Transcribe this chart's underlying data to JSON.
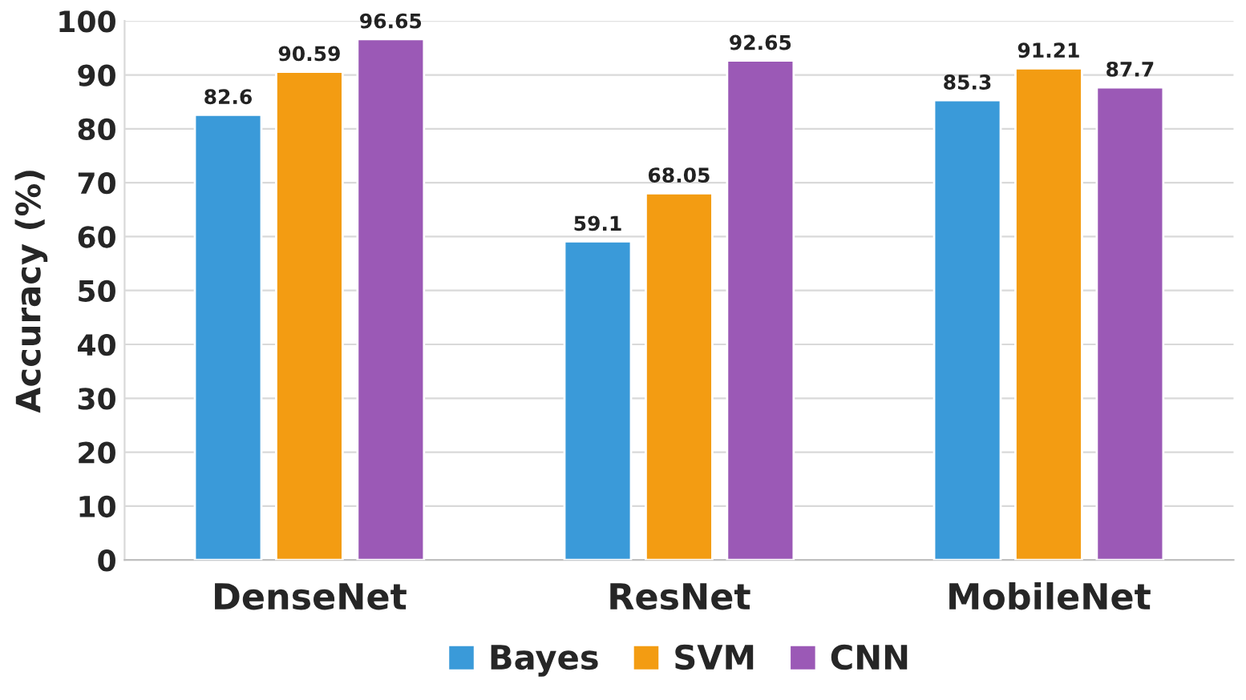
{
  "chart_data": {
    "type": "bar",
    "ylabel": "Accuracy (%)",
    "categories": [
      "DenseNet",
      "ResNet",
      "MobileNet"
    ],
    "series": [
      {
        "name": "Bayes",
        "color": "#3a9ad9",
        "values": [
          82.6,
          59.1,
          85.3
        ]
      },
      {
        "name": "SVM",
        "color": "#f39c12",
        "values": [
          90.59,
          68.05,
          91.21
        ]
      },
      {
        "name": "CNN",
        "color": "#9b59b6",
        "values": [
          96.65,
          92.65,
          87.7
        ]
      }
    ],
    "ylim": [
      0,
      100
    ],
    "yticks": [
      0,
      10,
      20,
      30,
      40,
      50,
      60,
      70,
      80,
      90,
      100
    ],
    "grid": "y",
    "legend": "bottom",
    "data_labels": true
  }
}
